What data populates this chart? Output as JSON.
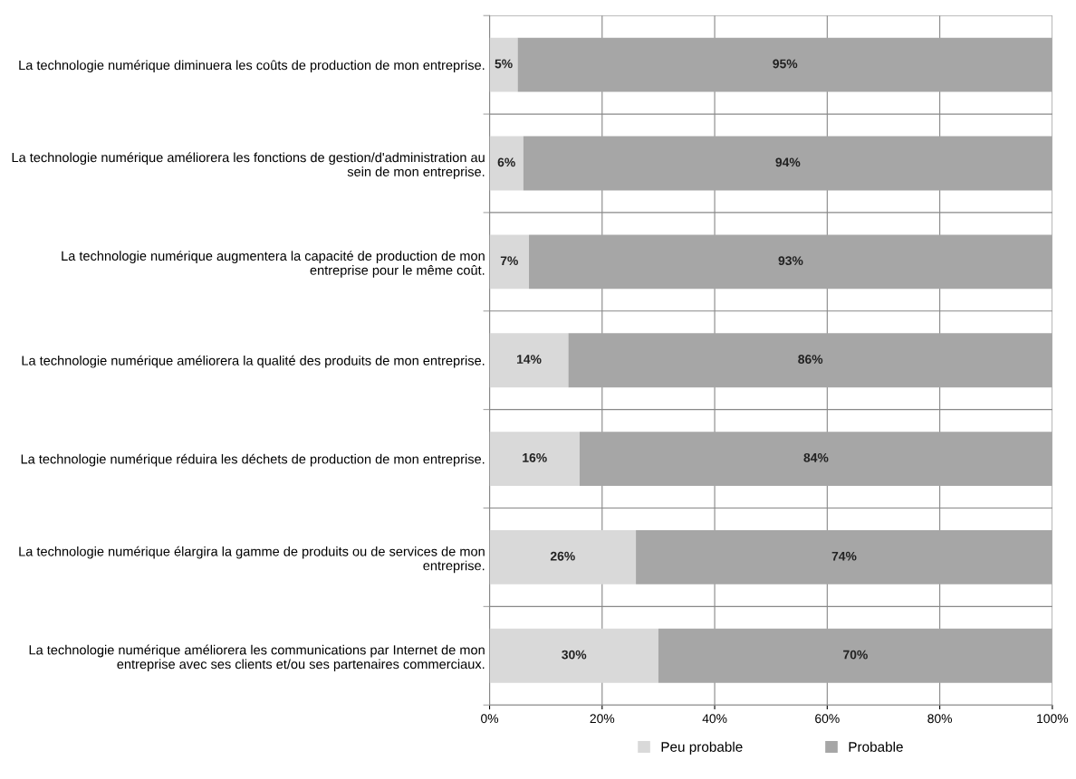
{
  "chart_data": {
    "type": "bar",
    "orientation": "horizontal",
    "stacked": true,
    "categories": [
      "La technologie numérique diminuera les coûts de production de mon entreprise.",
      "La technologie numérique améliorera les fonctions de gestion/d'administration au sein de mon entreprise.",
      "La technologie numérique augmentera la capacité de production de mon entreprise pour le même coût.",
      "La technologie numérique améliorera la qualité des produits de mon entreprise.",
      "La technologie numérique réduira les déchets de production de mon entreprise.",
      "La technologie numérique élargira la gamme de produits ou de services de mon entreprise.",
      "La technologie numérique améliorera les communications par Internet de mon entreprise avec ses clients et/ou ses partenaires commerciaux."
    ],
    "series": [
      {
        "name": "Peu probable",
        "color": "#d9d9d9",
        "values": [
          5,
          6,
          7,
          14,
          16,
          26,
          30
        ],
        "value_labels": [
          "5%",
          "6%",
          "7%",
          "14%",
          "16%",
          "26%",
          "30%"
        ]
      },
      {
        "name": "Probable",
        "color": "#a6a6a6",
        "values": [
          95,
          94,
          93,
          86,
          84,
          74,
          70
        ],
        "value_labels": [
          "95%",
          "94%",
          "93%",
          "86%",
          "84%",
          "74%",
          "70%"
        ]
      }
    ],
    "xlim": [
      0,
      100
    ],
    "xticks": [
      {
        "value": 0,
        "label": "0%"
      },
      {
        "value": 20,
        "label": "20%"
      },
      {
        "value": 40,
        "label": "40%"
      },
      {
        "value": 60,
        "label": "60%"
      },
      {
        "value": 80,
        "label": "80%"
      },
      {
        "value": 100,
        "label": "100%"
      }
    ],
    "grid": true,
    "legend": "bottom"
  }
}
